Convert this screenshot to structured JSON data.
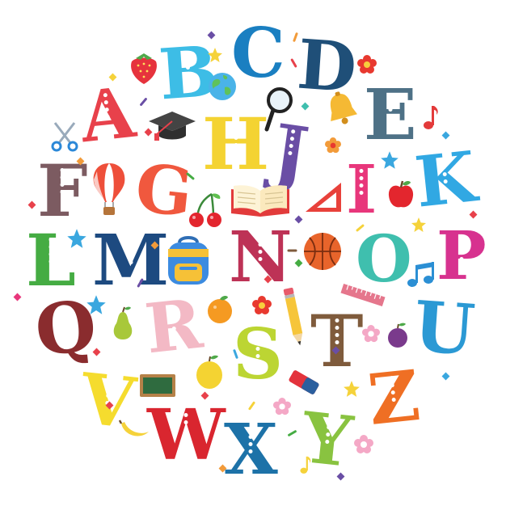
{
  "letters": [
    {
      "char": "A",
      "color": "#e8414b"
    },
    {
      "char": "B",
      "color": "#3dbde6"
    },
    {
      "char": "C",
      "color": "#1a7fc1"
    },
    {
      "char": "D",
      "color": "#1f4f78"
    },
    {
      "char": "E",
      "color": "#4e7186"
    },
    {
      "char": "F",
      "color": "#7c5b61"
    },
    {
      "char": "G",
      "color": "#f0583e"
    },
    {
      "char": "H",
      "color": "#f4d332"
    },
    {
      "char": "I",
      "color": "#e8367b"
    },
    {
      "char": "J",
      "color": "#6a4ea5"
    },
    {
      "char": "K",
      "color": "#31a8e3"
    },
    {
      "char": "L",
      "color": "#45ac43"
    },
    {
      "char": "M",
      "color": "#1d4a80"
    },
    {
      "char": "N",
      "color": "#bd3256"
    },
    {
      "char": "O",
      "color": "#3fbfae"
    },
    {
      "char": "P",
      "color": "#d7328f"
    },
    {
      "char": "Q",
      "color": "#8a2c2e"
    },
    {
      "char": "R",
      "color": "#f3b9c5"
    },
    {
      "char": "S",
      "color": "#bcd533"
    },
    {
      "char": "T",
      "color": "#7f5b3c"
    },
    {
      "char": "U",
      "color": "#2b99d4"
    },
    {
      "char": "V",
      "color": "#f5dc2e"
    },
    {
      "char": "W",
      "color": "#d9262f"
    },
    {
      "char": "X",
      "color": "#1d72a8"
    },
    {
      "char": "Y",
      "color": "#89c340"
    },
    {
      "char": "Z",
      "color": "#ef6f24"
    }
  ],
  "decorations": [
    {
      "name": "strawberry-icon"
    },
    {
      "name": "star-icon"
    },
    {
      "name": "globe-icon"
    },
    {
      "name": "magnifier-icon"
    },
    {
      "name": "bell-icon"
    },
    {
      "name": "flower-icon"
    },
    {
      "name": "graduation-cap-icon"
    },
    {
      "name": "scissors-icon"
    },
    {
      "name": "music-note-icon"
    },
    {
      "name": "hot-air-balloon-icon"
    },
    {
      "name": "cherries-icon"
    },
    {
      "name": "open-book-icon"
    },
    {
      "name": "set-square-icon"
    },
    {
      "name": "apple-icon"
    },
    {
      "name": "backpack-icon"
    },
    {
      "name": "basketball-icon"
    },
    {
      "name": "pear-icon"
    },
    {
      "name": "orange-icon"
    },
    {
      "name": "pencil-icon"
    },
    {
      "name": "ruler-icon"
    },
    {
      "name": "plum-icon"
    },
    {
      "name": "chalkboard-icon"
    },
    {
      "name": "lemon-icon"
    },
    {
      "name": "eraser-icon"
    },
    {
      "name": "banana-icon"
    }
  ]
}
